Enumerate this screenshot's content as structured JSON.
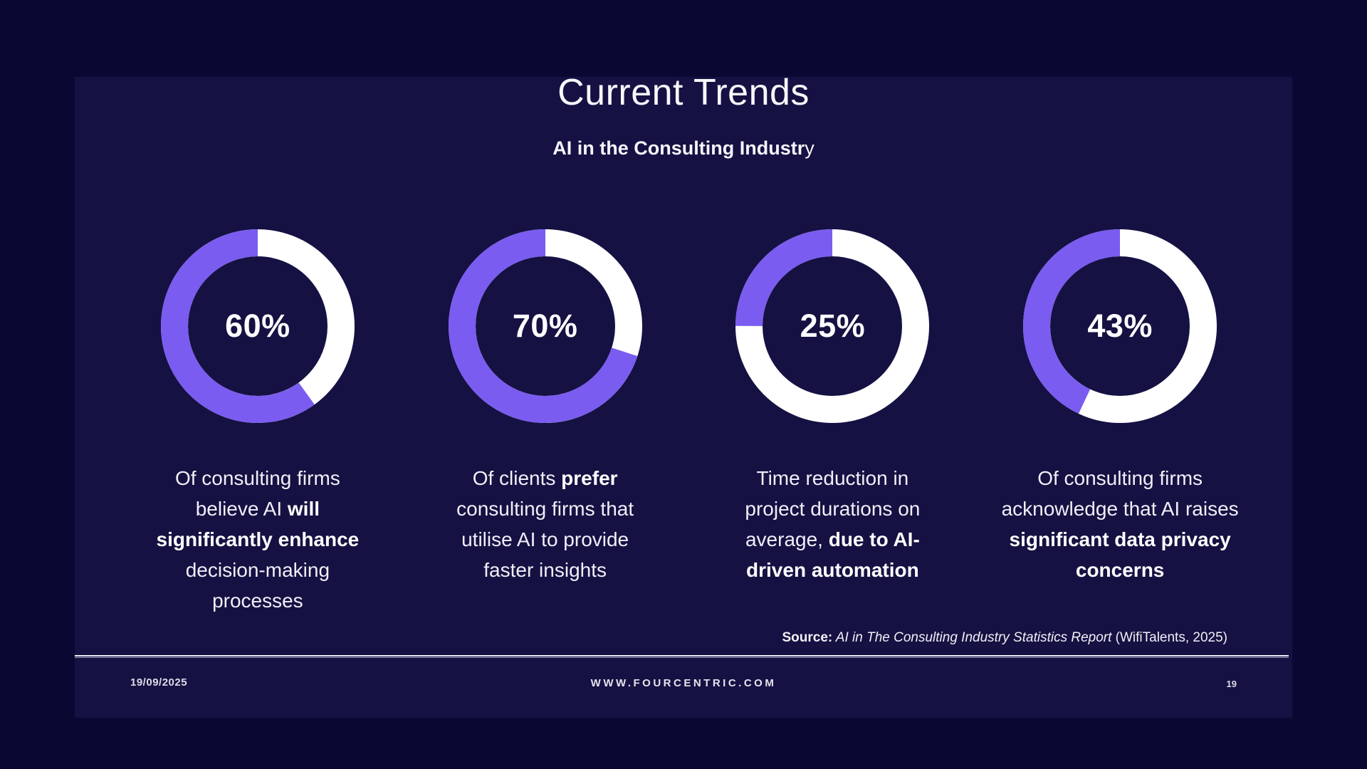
{
  "slide": {
    "title": "Current Trends",
    "subtitle_bold": "AI in the Consulting Industr",
    "subtitle_tail": "y",
    "source": {
      "label": "Source:",
      "report": " AI in The Consulting Industry Statistics Report",
      "suffix": " (WifiTalents, 2025)"
    },
    "footer": {
      "date": "19/09/2025",
      "website": "WWW.FOURCENTRIC.COM",
      "page": "19"
    }
  },
  "colors": {
    "outer_background": "#0A0833",
    "slide_background": "#151142",
    "accent_purple": "#7A5CF0",
    "ring_white": "#FFFFFF"
  },
  "chart_data": {
    "type": "pie",
    "subtype": "donut",
    "title": "Current Trends",
    "subtitle": "AI in the Consulting Industry",
    "unit": "%",
    "fill_color": "#7A5CF0",
    "track_color": "#FFFFFF",
    "fill_start": "top",
    "fill_direction": "counterclockwise",
    "values": [
      60,
      70,
      25,
      43
    ],
    "labels": [
      "60%",
      "70%",
      "25%",
      "43%"
    ],
    "descriptions": [
      "Of consulting firms believe AI will significantly enhance decision-making processes",
      "Of clients prefer consulting firms that utilise AI to provide faster insights",
      "Time reduction in project durations on average, due to AI-driven automation",
      "Of consulting firms acknowledge that AI raises significant data privacy concerns"
    ]
  },
  "stats": [
    {
      "caption_lines": [
        [
          {
            "t": "Of consulting firms"
          }
        ],
        [
          {
            "t": "believe AI "
          },
          {
            "t": "will",
            "b": true
          }
        ],
        [
          {
            "t": "significantly enhance",
            "b": true
          }
        ],
        [
          {
            "t": "decision-making"
          }
        ],
        [
          {
            "t": "processes"
          }
        ]
      ]
    },
    {
      "caption_lines": [
        [
          {
            "t": "Of clients "
          },
          {
            "t": "prefer",
            "b": true
          }
        ],
        [
          {
            "t": "consulting firms that"
          }
        ],
        [
          {
            "t": "utilise AI to provide"
          }
        ],
        [
          {
            "t": "faster insights"
          }
        ]
      ]
    },
    {
      "caption_lines": [
        [
          {
            "t": "Time reduction in"
          }
        ],
        [
          {
            "t": "project durations on"
          }
        ],
        [
          {
            "t": "average, "
          },
          {
            "t": "due to AI-",
            "b": true
          }
        ],
        [
          {
            "t": "driven automation",
            "b": true
          }
        ]
      ]
    },
    {
      "caption_lines": [
        [
          {
            "t": "Of consulting firms"
          }
        ],
        [
          {
            "t": "acknowledge that AI raises"
          }
        ],
        [
          {
            "t": "significant data privacy",
            "b": true
          }
        ],
        [
          {
            "t": "concerns",
            "b": true
          }
        ]
      ]
    }
  ]
}
